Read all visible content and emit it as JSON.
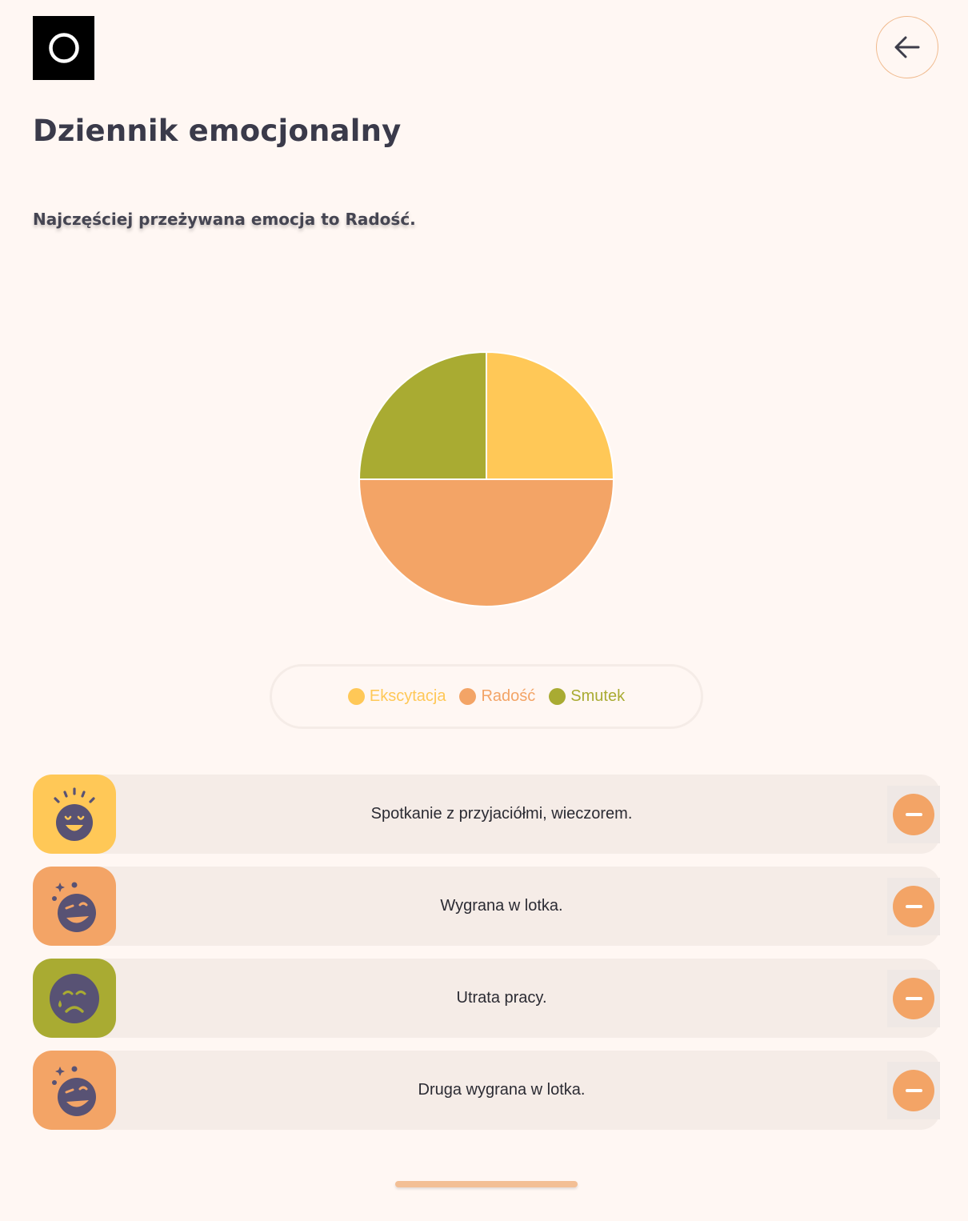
{
  "header": {
    "logo_icon": "ring-icon",
    "back_icon": "arrow-left-icon"
  },
  "page": {
    "title": "Dziennik emocjonalny",
    "summary": "Najczęściej przeżywana emocja to Radość."
  },
  "chart_data": {
    "type": "pie",
    "categories": [
      "Ekscytacja",
      "Radość",
      "Smutek"
    ],
    "values": [
      1,
      2,
      1
    ],
    "colors": [
      "#ffc857",
      "#f3a466",
      "#a9ab32"
    ],
    "legend": "bottom"
  },
  "legend": {
    "items": [
      {
        "label": "Ekscytacja",
        "color": "#ffc857"
      },
      {
        "label": "Radość",
        "color": "#f3a466"
      },
      {
        "label": "Smutek",
        "color": "#a9ab32"
      }
    ]
  },
  "entries": [
    {
      "text": "Spotkanie z przyjaciółmi, wieczorem.",
      "emotion_icon": "excited-face-icon",
      "color": "#ffc857"
    },
    {
      "text": "Wygrana w lotka.",
      "emotion_icon": "winking-face-icon",
      "color": "#f3a466"
    },
    {
      "text": "Utrata pracy.",
      "emotion_icon": "sad-face-icon",
      "color": "#a9ab32"
    },
    {
      "text": "Druga wygrana w lotka.",
      "emotion_icon": "winking-face-icon",
      "color": "#f3a466"
    }
  ]
}
